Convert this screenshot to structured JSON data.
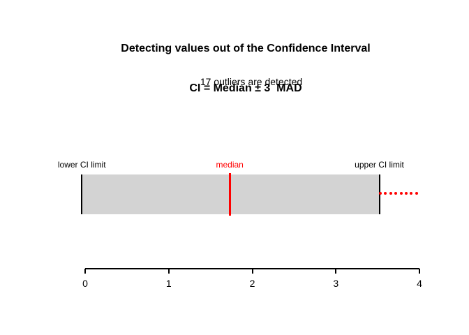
{
  "chart_data": {
    "type": "bar",
    "orientation": "horizontal",
    "title_line1": "Detecting values out of the Confidence Interval",
    "title_line2": "CI = Median ± 3  MAD",
    "subtitle": "17 outliers are detected",
    "annotations": {
      "lower": "lower CI limit",
      "median": "median",
      "upper": "upper CI limit"
    },
    "xlabel": "",
    "ylabel": "",
    "xlim": [
      0,
      4
    ],
    "xticks": [
      0,
      1,
      2,
      3,
      4
    ],
    "interval": {
      "lower_ci_limit": -0.04,
      "median": 1.73,
      "upper_ci_limit": 3.52
    },
    "outlier_points_x": [
      3.53,
      3.59,
      3.66,
      3.72,
      3.78,
      3.84,
      3.9,
      3.97
    ],
    "outliers_detected_count": 17,
    "grid": false,
    "legend": false,
    "colors": {
      "interval_fill": "#d3d3d3",
      "limit_line": "#000000",
      "median_line": "#ff0000",
      "median_label": "#ff0000",
      "outlier_dot": "#ff0000",
      "axis": "#000000",
      "text": "#000000"
    }
  }
}
